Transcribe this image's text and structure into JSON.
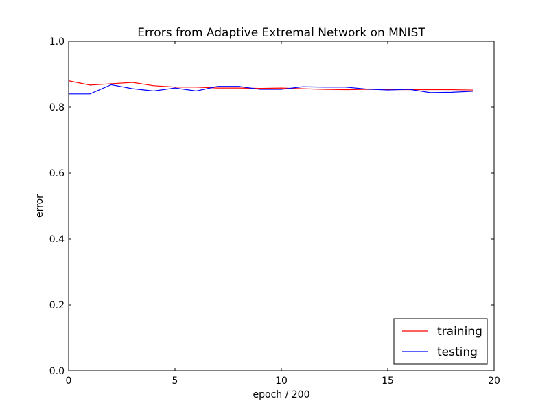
{
  "chart_data": {
    "type": "line",
    "title": "Errors from Adaptive Extremal Network on MNIST",
    "xlabel": "epoch / 200",
    "ylabel": "error",
    "xlim": [
      0,
      20
    ],
    "ylim": [
      0.0,
      1.0
    ],
    "xticks": [
      0,
      5,
      10,
      15,
      20
    ],
    "xtick_labels": [
      "0",
      "5",
      "10",
      "15",
      "20"
    ],
    "yticks": [
      0.0,
      0.2,
      0.4,
      0.6,
      0.8,
      1.0
    ],
    "ytick_labels": [
      "0.0",
      "0.2",
      "0.4",
      "0.6",
      "0.8",
      "1.0"
    ],
    "grid": false,
    "legend_position": "lower-right",
    "x": [
      0,
      1,
      2,
      3,
      4,
      5,
      6,
      7,
      8,
      9,
      10,
      11,
      12,
      13,
      14,
      15,
      16,
      17,
      18,
      19
    ],
    "series": [
      {
        "name": "training",
        "color": "#ff0000",
        "values": [
          0.88,
          0.867,
          0.871,
          0.875,
          0.865,
          0.861,
          0.861,
          0.858,
          0.858,
          0.857,
          0.858,
          0.856,
          0.854,
          0.853,
          0.854,
          0.853,
          0.853,
          0.853,
          0.853,
          0.852
        ]
      },
      {
        "name": "testing",
        "color": "#0000ff",
        "values": [
          0.84,
          0.84,
          0.868,
          0.856,
          0.849,
          0.858,
          0.849,
          0.863,
          0.863,
          0.854,
          0.854,
          0.862,
          0.861,
          0.861,
          0.855,
          0.852,
          0.854,
          0.844,
          0.845,
          0.848
        ]
      }
    ]
  }
}
